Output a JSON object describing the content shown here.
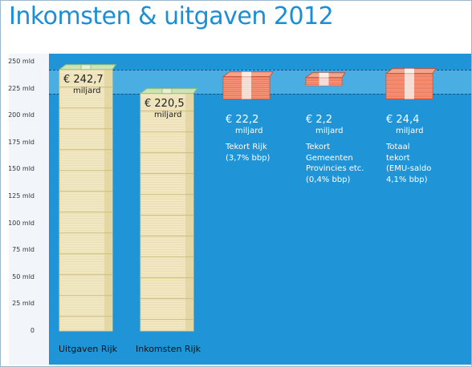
{
  "title": "Inkomsten & uitgaven 2012",
  "colors": {
    "title": "#1a8fd6",
    "plot_bg": "#1f95d8",
    "band": "#4aaee3",
    "money_stack": "#f1e7c3",
    "deficit_stack": "#f07a5c"
  },
  "chart_data": {
    "type": "bar",
    "y_ticks": [
      "250 mld",
      "225 mld",
      "200 mld",
      "175 mld",
      "150 mld",
      "125 mld",
      "100 mld",
      "75 mld",
      "50 mld",
      "25 mld",
      "0"
    ],
    "ylim": [
      0,
      250
    ],
    "reference_lines": [
      242.7,
      220.5
    ],
    "categories": [
      "Uitgaven Rijk",
      "Inkomsten Rijk",
      "",
      "",
      ""
    ],
    "bars": [
      {
        "label": "Uitgaven Rijk",
        "value": 242.7,
        "value_text": "€ 242,7",
        "unit": "miljard",
        "desc": []
      },
      {
        "label": "Inkomsten Rijk",
        "value": 220.5,
        "value_text": "€ 220,5",
        "unit": "miljard",
        "desc": []
      },
      {
        "label": "",
        "value": 22.2,
        "value_text": "€ 22,2",
        "unit": "miljard",
        "desc": [
          "Tekort Rijk",
          "(3,7% bbp)"
        ]
      },
      {
        "label": "",
        "value": 2.2,
        "value_text": "€ 2,2",
        "unit": "miljard",
        "desc": [
          "Tekort",
          "Gemeenten",
          "Provincies etc.",
          "(0,4% bbp)"
        ]
      },
      {
        "label": "",
        "value": 24.4,
        "value_text": "€ 24,4",
        "unit": "miljard",
        "desc": [
          "Totaal",
          "tekort",
          "(EMU-saldo",
          "4,1% bbp)"
        ]
      }
    ]
  }
}
